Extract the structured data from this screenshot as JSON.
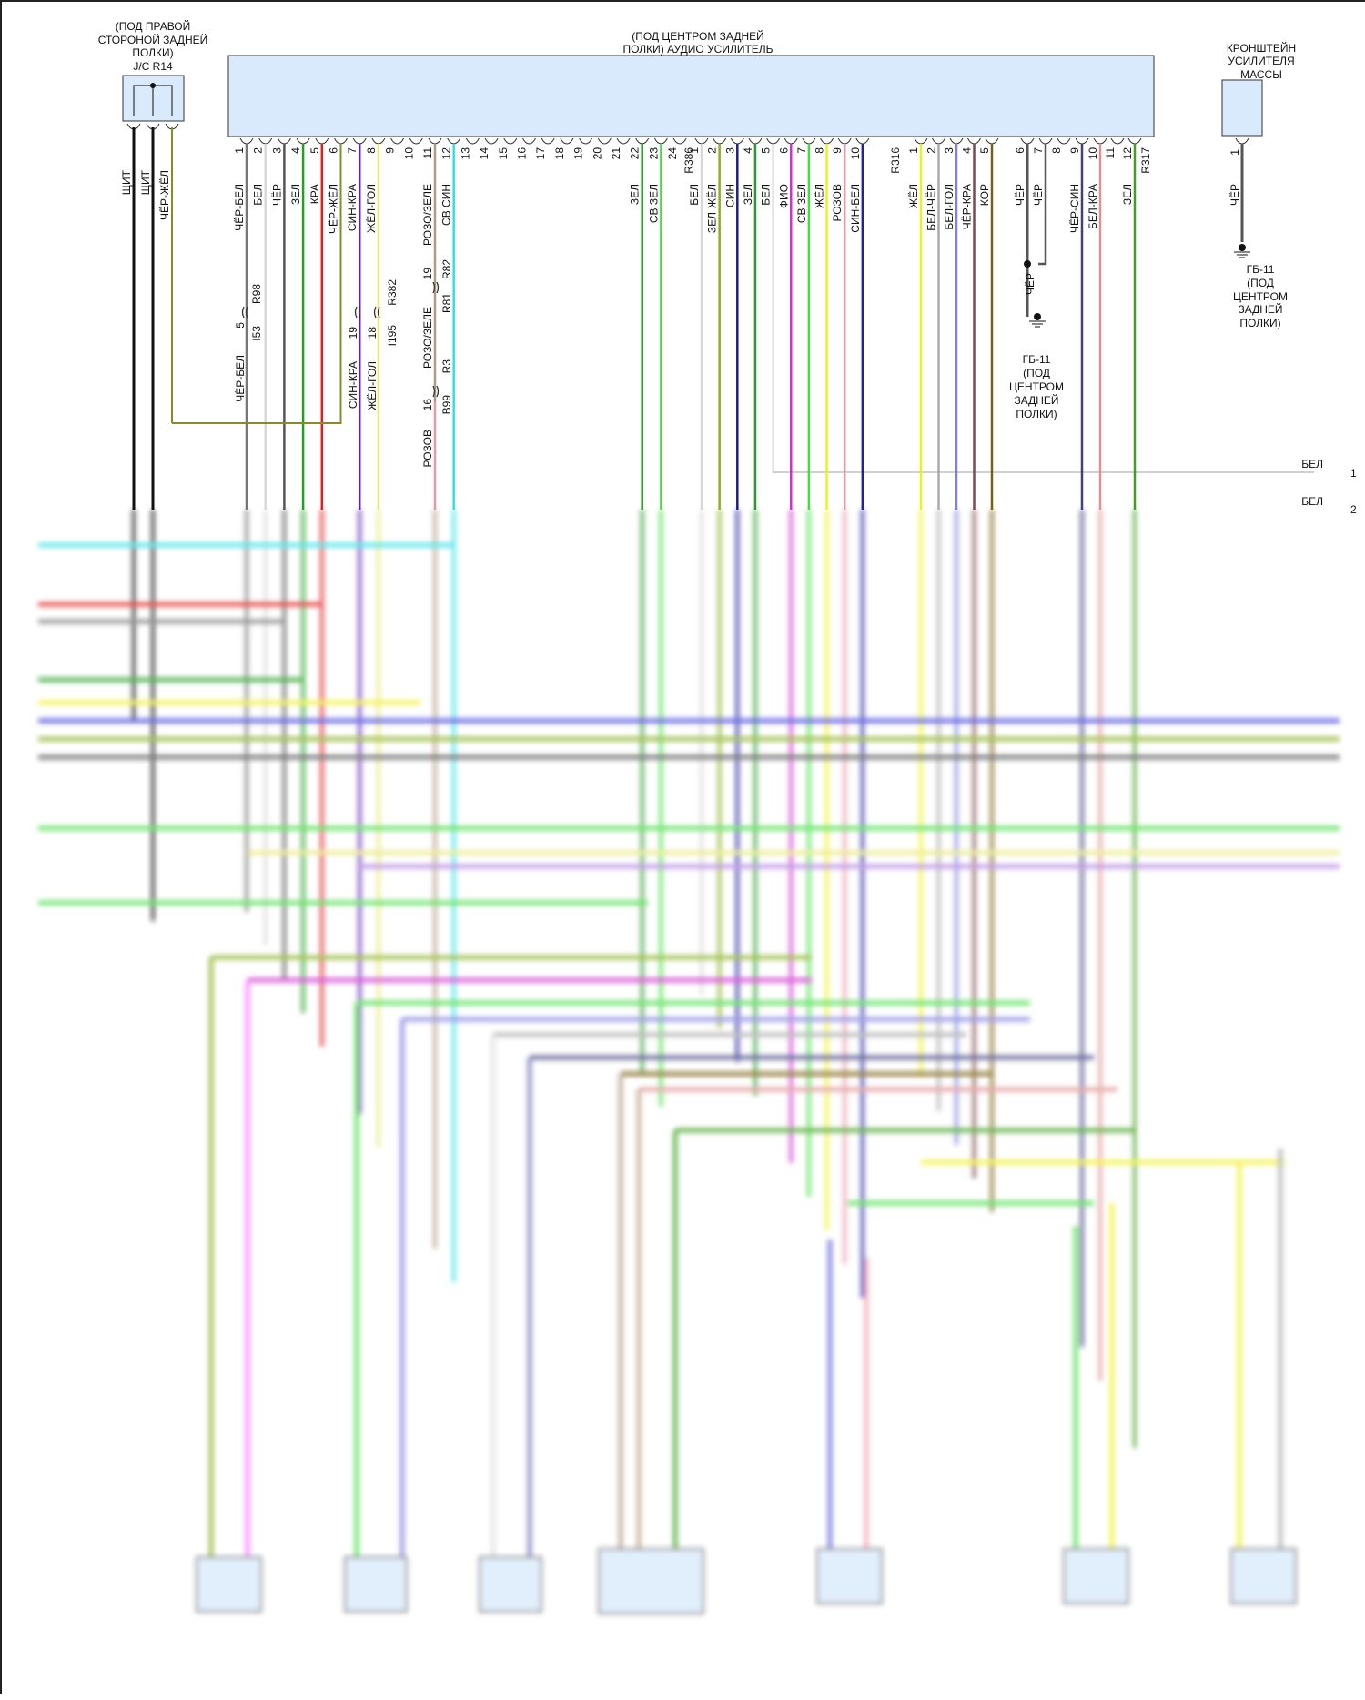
{
  "jc": {
    "title": [
      "(ПОД ПРАВОЙ",
      "СТОРОНОЙ ЗАДНЕЙ",
      "ПОЛКИ)",
      "J/C R14"
    ],
    "wires": [
      {
        "label": "ЩИТ",
        "color": "#111111"
      },
      {
        "label": "ЩИТ",
        "color": "#111111"
      },
      {
        "label": "ЧЁР-ЖЁЛ",
        "color": "#8a8a2a"
      }
    ]
  },
  "amp": {
    "title": [
      "(ПОД ЦЕНТРОМ ЗАДНЕЙ",
      "ПОЛКИ) АУДИО УСИЛИТЕЛЬ"
    ],
    "connectors": [
      {
        "id": "R386",
        "pins": [
          {
            "n": "1",
            "label": "ЧЁР-БЕЛ",
            "color": "#777777"
          },
          {
            "n": "2",
            "label": "БЕЛ",
            "color": "#d8d8d8"
          },
          {
            "n": "3",
            "label": "ЧЁР",
            "color": "#555555"
          },
          {
            "n": "4",
            "label": "ЗЕЛ",
            "color": "#22a022"
          },
          {
            "n": "5",
            "label": "КРА",
            "color": "#e02020"
          },
          {
            "n": "6",
            "label": "ЧЁР-ЖЁЛ",
            "color": "#8a8a2a"
          },
          {
            "n": "7",
            "label": "СИН-КРА",
            "color": "#5a20b0"
          },
          {
            "n": "8",
            "label": "ЖЁЛ-ГОЛ",
            "color": "#e8e878"
          },
          {
            "n": "9",
            "label": "",
            "color": ""
          },
          {
            "n": "10",
            "label": "",
            "color": ""
          },
          {
            "n": "11",
            "label": "РОЗО/ЗЕЛЕ",
            "color": "#b09a80"
          },
          {
            "n": "12",
            "label": "СВ СИН",
            "color": "#30e0e8"
          },
          {
            "n": "13",
            "label": "",
            "color": ""
          },
          {
            "n": "14",
            "label": "",
            "color": ""
          },
          {
            "n": "15",
            "label": "",
            "color": ""
          },
          {
            "n": "16",
            "label": "",
            "color": ""
          },
          {
            "n": "17",
            "label": "",
            "color": ""
          },
          {
            "n": "18",
            "label": "",
            "color": ""
          },
          {
            "n": "19",
            "label": "",
            "color": ""
          },
          {
            "n": "20",
            "label": "",
            "color": ""
          },
          {
            "n": "21",
            "label": "",
            "color": ""
          },
          {
            "n": "22",
            "label": "ЗЕЛ",
            "color": "#2a9a2a"
          },
          {
            "n": "23",
            "label": "СВ ЗЕЛ",
            "color": "#44dd44"
          },
          {
            "n": "24",
            "label": "",
            "color": ""
          }
        ]
      },
      {
        "id": "R316",
        "pins": [
          {
            "n": "1",
            "label": "БЕЛ",
            "color": "#d8d8d8"
          },
          {
            "n": "2",
            "label": "ЗЕЛ-ЖЁЛ",
            "color": "#88b020"
          },
          {
            "n": "3",
            "label": "СИН",
            "color": "#1a1aa0"
          },
          {
            "n": "4",
            "label": "ЗЕЛ",
            "color": "#2a9a2a"
          },
          {
            "n": "5",
            "label": "БЕЛ",
            "color": "#d0d0d0"
          },
          {
            "n": "6",
            "label": "ФИО",
            "color": "#d030d0"
          },
          {
            "n": "7",
            "label": "СВ ЗЕЛ",
            "color": "#44dd44"
          },
          {
            "n": "8",
            "label": "ЖЁЛ",
            "color": "#f0f020"
          },
          {
            "n": "9",
            "label": "РОЗОВ",
            "color": "#e898a8"
          },
          {
            "n": "10",
            "label": "СИН-БЕЛ",
            "color": "#2020a0"
          }
        ]
      },
      {
        "id": "R317",
        "pins": [
          {
            "n": "1",
            "label": "ЖЁЛ",
            "color": "#f0f020"
          },
          {
            "n": "2",
            "label": "БЕЛ-ЧЁР",
            "color": "#aaaaaa"
          },
          {
            "n": "3",
            "label": "БЕЛ-ГОЛ",
            "color": "#8080e0"
          },
          {
            "n": "4",
            "label": "ЧЁР-КРА",
            "color": "#7a4a4a"
          },
          {
            "n": "5",
            "label": "КОР",
            "color": "#7a6010"
          },
          {
            "n": "6",
            "label": "ЧЁР",
            "color": "#555555"
          },
          {
            "n": "7",
            "label": "ЧЁР",
            "color": "#555555"
          },
          {
            "n": "8",
            "label": "",
            "color": ""
          },
          {
            "n": "9",
            "label": "ЧЁР-СИН",
            "color": "#404080"
          },
          {
            "n": "10",
            "label": "БЕЛ-КРА",
            "color": "#e09090"
          },
          {
            "n": "11",
            "label": "",
            "color": ""
          },
          {
            "n": "12",
            "label": "ЗЕЛ",
            "color": "#40a020"
          }
        ]
      }
    ]
  },
  "splices": {
    "r98": {
      "top": "R98",
      "pin": "5",
      "bottom": "I53",
      "lower_label": "ЧЁР-БЕЛ"
    },
    "r382": {
      "top": "R382",
      "pins": [
        "19",
        "18"
      ],
      "bottom": "I195",
      "lower_labels": [
        "СИН-КРА",
        "ЖЁЛ-ГОЛ"
      ]
    },
    "r82": {
      "pin": "19",
      "top": "R82",
      "bottom": "R81",
      "lower_label": "РОЗО/ЗЕЛЕ"
    },
    "r3": {
      "top": "R3",
      "pin": "16",
      "bottom": "B99",
      "lower_label": "РОЗОВ"
    }
  },
  "ground1": {
    "wire": "ЧЁР",
    "title": [
      "ГБ-11",
      "(ПОД",
      "ЦЕНТРОМ",
      "ЗАДНЕЙ",
      "ПОЛКИ)"
    ]
  },
  "bracket": {
    "title": [
      "КРОНШТЕЙН",
      "УСИЛИТЕЛЯ",
      "МАССЫ"
    ],
    "pin": "1",
    "wire": "ЧЁР",
    "ground": [
      "ГБ-11",
      "(ПОД",
      "ЦЕНТРОМ",
      "ЗАДНЕЙ",
      "ПОЛКИ)"
    ]
  },
  "offpage": [
    {
      "label": "БЕЛ",
      "n": "1"
    },
    {
      "label": "БЕЛ",
      "n": "2"
    }
  ],
  "colors": {
    "component_fill": "#d8eafc",
    "component_stroke": "#333333"
  }
}
